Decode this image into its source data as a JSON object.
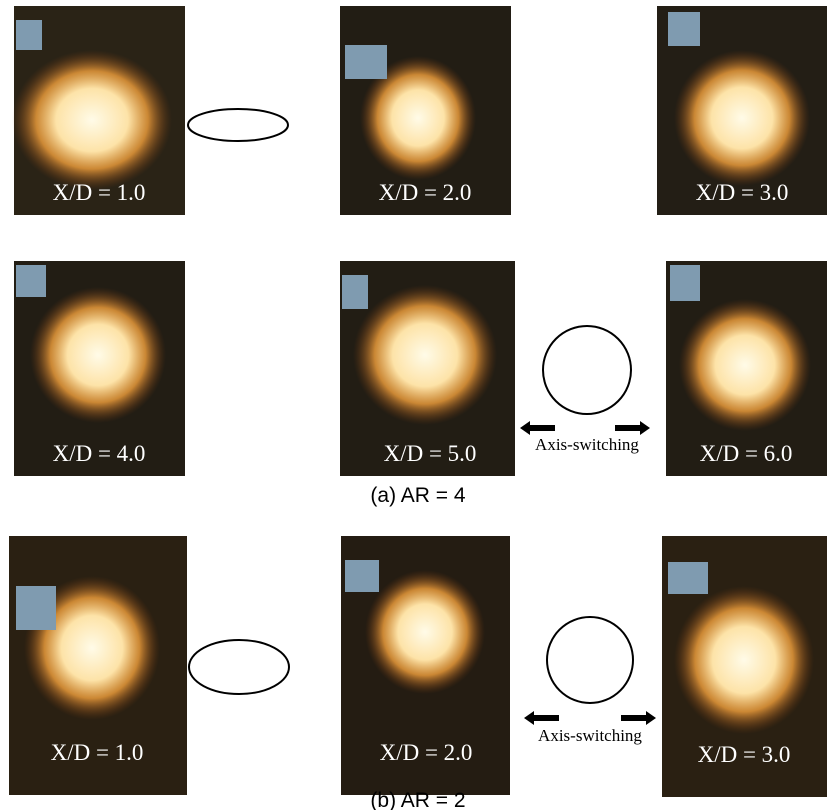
{
  "panel_a": {
    "caption": "(a) AR = 4",
    "photos": [
      {
        "label": "X/D = 1.0"
      },
      {
        "label": "X/D = 2.0"
      },
      {
        "label": "X/D = 3.0"
      },
      {
        "label": "X/D = 4.0"
      },
      {
        "label": "X/D = 5.0"
      },
      {
        "label": "X/D = 6.0"
      }
    ],
    "annotation": "Axis-switching"
  },
  "panel_b": {
    "caption": "(b) AR = 2",
    "photos": [
      {
        "label": "X/D = 1.0"
      },
      {
        "label": "X/D = 2.0"
      },
      {
        "label": "X/D = 3.0"
      }
    ],
    "annotation": "Axis-switching"
  }
}
